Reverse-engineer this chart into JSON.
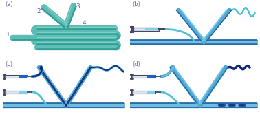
{
  "bg": "#ffffff",
  "teal": "#5dbdb5",
  "teal_dark": "#2e9e96",
  "teal_light": "#8ed8d2",
  "ch_top": "#7ecde8",
  "ch_mid": "#4fa8d5",
  "ch_bot": "#2060a0",
  "ch_fill": "#a8dff0",
  "navy": "#0a2050",
  "navy2": "#1a3a80",
  "cyan_tube": "#60c8e0",
  "cyan_wavy": "#50c0d8",
  "dark_fluid": "#102878",
  "purple": "#7060b0",
  "syr_body": "#d8e8f0",
  "syr_edge": "#444466",
  "syr_fill_dark": "#2060c0",
  "syr_fill_light": "#80d0e8",
  "panel_labels": [
    "(a)",
    "(b)",
    "(c)",
    "(d)"
  ],
  "numbers": [
    "1",
    "2",
    "3",
    "4"
  ]
}
